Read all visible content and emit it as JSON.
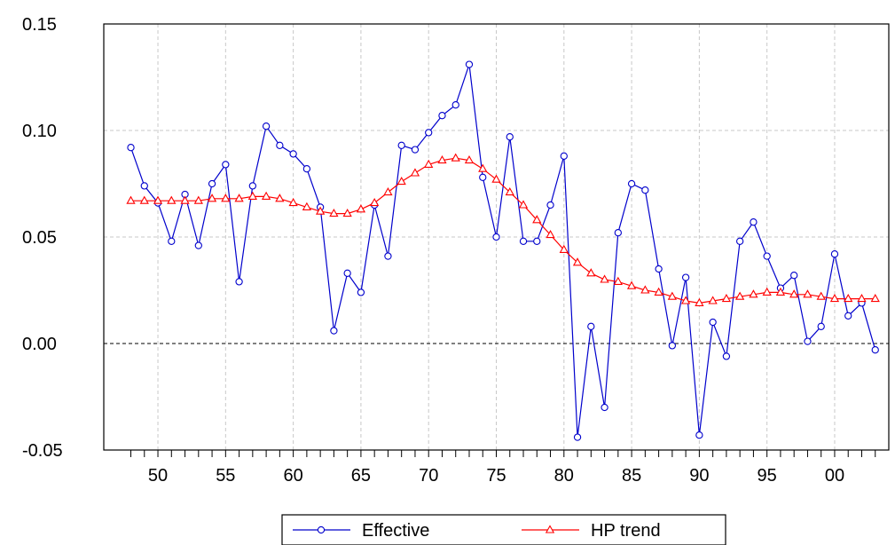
{
  "chart_data": {
    "type": "line",
    "title": "",
    "xlabel": "",
    "ylabel": "",
    "x": [
      1948,
      1949,
      1950,
      1951,
      1952,
      1953,
      1954,
      1955,
      1956,
      1957,
      1958,
      1959,
      1960,
      1961,
      1962,
      1963,
      1964,
      1965,
      1966,
      1967,
      1968,
      1969,
      1970,
      1971,
      1972,
      1973,
      1974,
      1975,
      1976,
      1977,
      1978,
      1979,
      1980,
      1981,
      1982,
      1983,
      1984,
      1985,
      1986,
      1987,
      1988,
      1989,
      1990,
      1991,
      1992,
      1993,
      1994,
      1995,
      1996,
      1997,
      1998,
      1999,
      2000,
      2001,
      2002,
      2003
    ],
    "xlim": [
      1946,
      2004
    ],
    "ylim": [
      -0.05,
      0.15
    ],
    "x_ticks": [
      1948,
      1949,
      1950,
      1951,
      1952,
      1953,
      1954,
      1955,
      1956,
      1957,
      1958,
      1959,
      1960,
      1961,
      1962,
      1963,
      1964,
      1965,
      1966,
      1967,
      1968,
      1969,
      1970,
      1971,
      1972,
      1973,
      1974,
      1975,
      1976,
      1977,
      1978,
      1979,
      1980,
      1981,
      1982,
      1983,
      1984,
      1985,
      1986,
      1987,
      1988,
      1989,
      1990,
      1991,
      1992,
      1993,
      1994,
      1995,
      1996,
      1997,
      1998,
      1999,
      2000,
      2001,
      2002,
      2003
    ],
    "x_tick_labels": [
      {
        "x": 1950,
        "label": "50"
      },
      {
        "x": 1955,
        "label": "55"
      },
      {
        "x": 1960,
        "label": "60"
      },
      {
        "x": 1965,
        "label": "65"
      },
      {
        "x": 1970,
        "label": "70"
      },
      {
        "x": 1975,
        "label": "75"
      },
      {
        "x": 1980,
        "label": "80"
      },
      {
        "x": 1985,
        "label": "85"
      },
      {
        "x": 1990,
        "label": "90"
      },
      {
        "x": 1995,
        "label": "95"
      },
      {
        "x": 2000,
        "label": "00"
      }
    ],
    "y_ticks": [
      {
        "value": -0.05,
        "label": "-0.05"
      },
      {
        "value": 0.0,
        "label": "0.00"
      },
      {
        "value": 0.05,
        "label": "0.05"
      },
      {
        "value": 0.1,
        "label": "0.10"
      },
      {
        "value": 0.15,
        "label": "0.15"
      }
    ],
    "grid": true,
    "zero_line": true,
    "legend_position": "bottom",
    "series": [
      {
        "name": "Effective",
        "color": "#0000cc",
        "marker": "circle",
        "values": [
          0.092,
          0.074,
          0.066,
          0.048,
          0.07,
          0.046,
          0.075,
          0.084,
          0.029,
          0.074,
          0.102,
          0.093,
          0.089,
          0.082,
          0.064,
          0.006,
          0.033,
          0.024,
          0.065,
          0.041,
          0.093,
          0.091,
          0.099,
          0.107,
          0.112,
          0.131,
          0.078,
          0.05,
          0.097,
          0.048,
          0.048,
          0.065,
          0.088,
          -0.044,
          0.008,
          -0.03,
          0.052,
          0.075,
          0.072,
          0.035,
          -0.001,
          0.031,
          -0.043,
          0.01,
          -0.006,
          0.048,
          0.057,
          0.041,
          0.026,
          0.032,
          0.001,
          0.008,
          0.042,
          0.013,
          0.019,
          -0.003
        ]
      },
      {
        "name": "HP trend",
        "color": "#ff0000",
        "marker": "triangle",
        "values": [
          0.067,
          0.067,
          0.067,
          0.067,
          0.067,
          0.067,
          0.068,
          0.068,
          0.068,
          0.069,
          0.069,
          0.068,
          0.066,
          0.064,
          0.062,
          0.061,
          0.061,
          0.063,
          0.066,
          0.071,
          0.076,
          0.08,
          0.084,
          0.086,
          0.087,
          0.086,
          0.082,
          0.077,
          0.071,
          0.065,
          0.058,
          0.051,
          0.044,
          0.038,
          0.033,
          0.03,
          0.029,
          0.027,
          0.025,
          0.024,
          0.022,
          0.02,
          0.019,
          0.02,
          0.021,
          0.022,
          0.023,
          0.024,
          0.024,
          0.023,
          0.023,
          0.022,
          0.021,
          0.021,
          0.021,
          0.021
        ]
      }
    ]
  }
}
